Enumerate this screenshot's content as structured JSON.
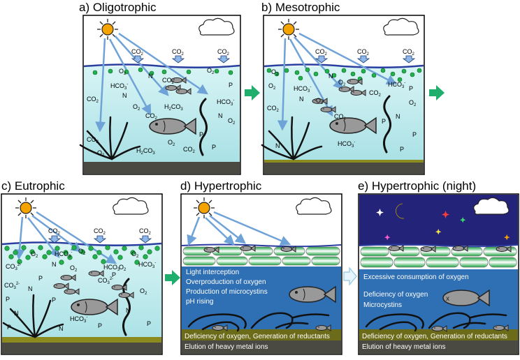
{
  "panels": {
    "a": {
      "title": "a) Oligotrophic"
    },
    "b": {
      "title": "b) Mesotrophic"
    },
    "c": {
      "title": "c) Eutrophic"
    },
    "d": {
      "title": "d) Hypertrophic",
      "notes": [
        "Light interception",
        "Overproduction of oxygen",
        "Production of microcystins",
        "pH rising"
      ],
      "bottom_notes": [
        "Deficiency of oxygen, Generation of reductants",
        "Elution of heavy metal ions"
      ]
    },
    "e": {
      "title": "e) Hypertrophic (night)",
      "notes": [
        "Excessive consumption of oxygen",
        "Deficiency of oxygen",
        "Microcystins"
      ],
      "bottom_notes": [
        "Deficiency of oxygen, Generation of reductants",
        "Elution of heavy metal ions"
      ]
    }
  },
  "chem": {
    "co2": "CO",
    "o2": "O",
    "hco3": "HCO",
    "h2co3": "H",
    "h2co3_mid": "CO",
    "co3": "CO",
    "n": "N",
    "p": "P",
    "sub2": "2",
    "sub3": "3",
    "sup_minus": "-",
    "sup_2minus": "2-"
  },
  "colors": {
    "water_light": "#c9eef0",
    "water_deep": "#9fdde2",
    "water_dark": "#2f6fb3",
    "surface_line": "#2b3fa0",
    "algae": "#22b14c",
    "sun": "#f5a300",
    "sediment": "#4a4a3a",
    "sediment_green": "#6b6b1a",
    "ray": "#6fa3d8",
    "arrow": "#1fae6b",
    "night_sky": "#23237a",
    "moon": "#f5e24a"
  }
}
